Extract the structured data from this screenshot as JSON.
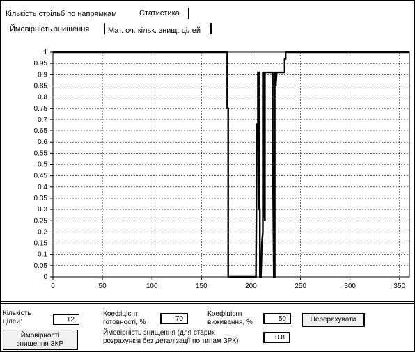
{
  "tabs_top": [
    {
      "label": "Кількість стрільб по напрямкам",
      "active": false
    },
    {
      "label": "Статистика",
      "active": true
    }
  ],
  "tabs_sub": [
    {
      "label": "Ймовірність знищення",
      "active": true
    },
    {
      "label": "Мат. оч. кільк. знищ. цілей",
      "active": false
    }
  ],
  "controls": {
    "targets_label": "Кількість\nцілей:",
    "targets_value": "12",
    "readiness_label": "Коефіцієнт\nготовності, %",
    "readiness_value": "70",
    "survival_label": "Коефіцієнт\nвиживання, %",
    "survival_value": "50",
    "recalc_button": "Перерахувати",
    "zkr_button": "Ймовірності\nзнищення ЗКР",
    "old_calc_label": "Ймовірність знищення (для старих\nрозрахунків без деталізації по типам ЗРК)",
    "old_calc_value": "0.8"
  },
  "chart_data": {
    "type": "line",
    "x_ticks": [
      0,
      50,
      100,
      150,
      200,
      250,
      300,
      350
    ],
    "y_ticks": [
      0,
      0.05,
      0.1,
      0.15,
      0.2,
      0.25,
      0.3,
      0.35,
      0.4,
      0.45,
      0.5,
      0.55,
      0.6,
      0.65,
      0.7,
      0.75,
      0.8,
      0.85,
      0.9,
      0.95,
      1
    ],
    "xlim": [
      0,
      360
    ],
    "ylim": [
      0,
      1
    ],
    "grid": true,
    "series": [
      {
        "color": "#000000",
        "points": [
          [
            0,
            1
          ],
          [
            176,
            1
          ],
          [
            176,
            0.75
          ],
          [
            177,
            0.75
          ],
          [
            177,
            0
          ],
          [
            205,
            0
          ],
          [
            206,
            0.68
          ],
          [
            207,
            0.68
          ],
          [
            207,
            0.91
          ],
          [
            208,
            0.91
          ],
          [
            208,
            0.3
          ],
          [
            209,
            0.3
          ],
          [
            209,
            0
          ],
          [
            210,
            0
          ],
          [
            211,
            0.15
          ],
          [
            212,
            0.2
          ],
          [
            212,
            0.91
          ],
          [
            213,
            0.91
          ],
          [
            213,
            0.3
          ],
          [
            214,
            0.25
          ],
          [
            214,
            0.91
          ],
          [
            222,
            0.91
          ],
          [
            222,
            0.58
          ],
          [
            223,
            0
          ],
          [
            224,
            0
          ],
          [
            224,
            0.91
          ],
          [
            225,
            0.91
          ],
          [
            225,
            0.85
          ],
          [
            226,
            0.91
          ],
          [
            234,
            0.91
          ],
          [
            234,
            0.97
          ],
          [
            235,
            0.97
          ],
          [
            235,
            1
          ],
          [
            360,
            1
          ]
        ]
      }
    ]
  }
}
